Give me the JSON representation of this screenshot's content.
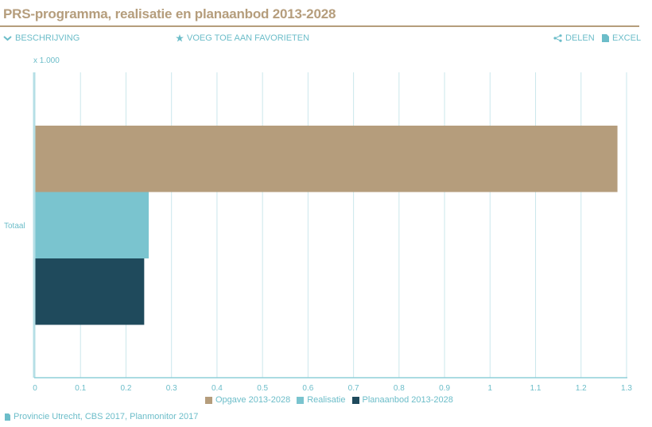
{
  "page": {
    "title": "PRS-programma, realisatie en planaanbod 2013-2028"
  },
  "toolbar": {
    "description_label": "BESCHRIJVING",
    "favorites_label": "VOEG TOE AAN FAVORIETEN",
    "share_label": "DELEN",
    "excel_label": "EXCEL"
  },
  "colors": {
    "accent": "#b59d7c",
    "link": "#6cbdc9",
    "opgave": "#b59d7c",
    "realisatie": "#7ac4cf",
    "planaanbod": "#1f4a5c"
  },
  "chart_data": {
    "type": "bar",
    "orientation": "horizontal",
    "unit_label": "x 1.000",
    "categories": [
      "Totaal"
    ],
    "series": [
      {
        "name": "Opgave 2013-2028",
        "values": [
          1.28
        ],
        "color": "#b59d7c"
      },
      {
        "name": "Realisatie",
        "values": [
          0.25
        ],
        "color": "#7ac4cf"
      },
      {
        "name": "Planaanbod 2013-2028",
        "values": [
          0.24
        ],
        "color": "#1f4a5c"
      }
    ],
    "xlim": [
      0,
      1.3
    ],
    "xticks": [
      "0",
      "0.1",
      "0.2",
      "0.3",
      "0.4",
      "0.5",
      "0.6",
      "0.7",
      "0.8",
      "0.9",
      "1",
      "1.1",
      "1.2",
      "1.3"
    ],
    "grid": true,
    "legend_position": "bottom"
  },
  "source": {
    "text": "Provincie Utrecht, CBS 2017, Planmonitor 2017"
  }
}
